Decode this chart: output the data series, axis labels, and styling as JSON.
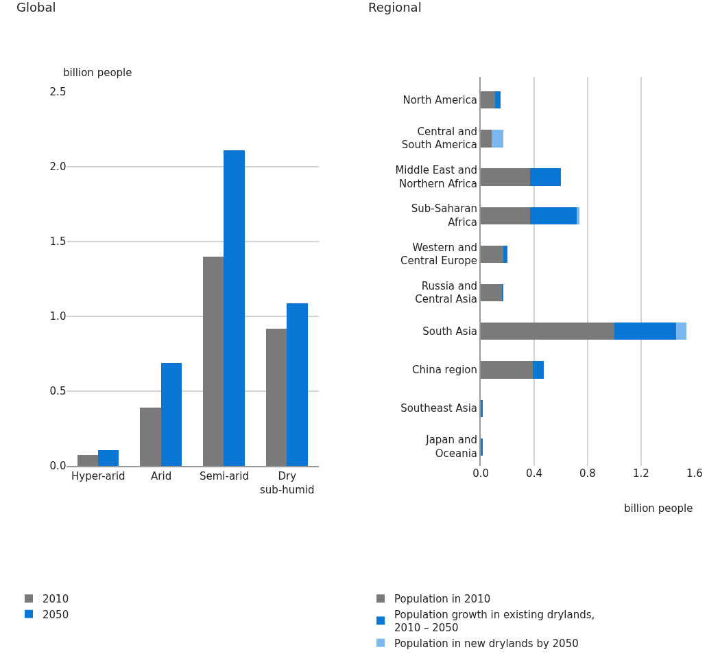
{
  "chart_data": [
    {
      "type": "bar",
      "title": "Global",
      "ylabel": "billion people",
      "categories": [
        "Hyper-arid",
        "Arid",
        "Semi-arid",
        "Dry\nsub-humid"
      ],
      "series": [
        {
          "name": "2010",
          "color": "#7a7a7a",
          "values": [
            0.075,
            0.39,
            1.4,
            0.92
          ]
        },
        {
          "name": "2050",
          "color": "#0a77d4",
          "values": [
            0.105,
            0.69,
            2.11,
            1.09
          ]
        }
      ],
      "ylim": [
        0,
        2.5
      ],
      "yticks": [
        {
          "value": 0,
          "label": "0.0"
        },
        0.5,
        {
          "value": 1,
          "label": "1.0"
        },
        1.5,
        {
          "value": 2,
          "label": "2.0"
        },
        2.5
      ],
      "grid": "y",
      "legend": "bottom"
    },
    {
      "type": "bar",
      "title": "Regional",
      "xlabel": "billion people",
      "orientation": "horizontal",
      "stacked": true,
      "categories": [
        "North America",
        "Central and\nSouth America",
        "Middle East and\nNorthern Africa",
        "Sub-Saharan\nAfrica",
        "Western and\nCentral Europe",
        "Russia and\nCentral Asia",
        "South Asia",
        "China region",
        "Southeast Asia",
        "Japan and\nOceania"
      ],
      "series": [
        {
          "name": "Population in 2010",
          "color": "#7a7a7a",
          "values": [
            0.11,
            0.08,
            0.37,
            0.37,
            0.17,
            0.16,
            1.0,
            0.39,
            0,
            0
          ]
        },
        {
          "name": "Population growth in existing drylands,\n2010 – 2050",
          "color": "#0a77d4",
          "values": [
            0.04,
            0,
            0.23,
            0.35,
            0.03,
            0.005,
            0.46,
            0.08,
            0.015,
            0.015
          ]
        },
        {
          "name": "Population in new drylands by 2050",
          "color": "#7ab8ef",
          "values": [
            0,
            0.09,
            0,
            0.02,
            0,
            0,
            0.08,
            0,
            0,
            0
          ]
        }
      ],
      "xlim": [
        0,
        1.6
      ],
      "xticks": [
        {
          "value": 0,
          "label": "0.0"
        },
        0.4,
        0.8,
        1.2,
        1.6
      ],
      "grid": "x",
      "legend": "bottom"
    }
  ]
}
